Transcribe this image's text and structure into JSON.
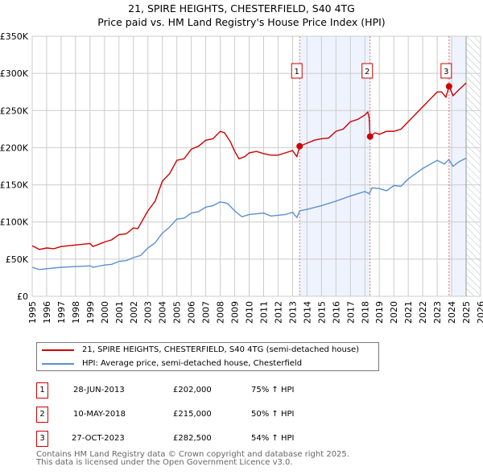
{
  "chart_data": {
    "type": "line",
    "title": "21, SPIRE HEIGHTS, CHESTERFIELD, S40 4TG",
    "subtitle": "Price paid vs. HM Land Registry's House Price Index (HPI)",
    "xlim": [
      1995,
      2026
    ],
    "ylim": [
      0,
      350000
    ],
    "x_ticks": [
      "1995",
      "1996",
      "1997",
      "1998",
      "1999",
      "2000",
      "2001",
      "2002",
      "2003",
      "2004",
      "2005",
      "2006",
      "2007",
      "2008",
      "2009",
      "2010",
      "2011",
      "2012",
      "2013",
      "2014",
      "2015",
      "2016",
      "2017",
      "2018",
      "2019",
      "2020",
      "2021",
      "2022",
      "2023",
      "2024",
      "2025",
      "2026"
    ],
    "y_ticks": [
      {
        "v": 0,
        "l": "£0"
      },
      {
        "v": 50000,
        "l": "£50K"
      },
      {
        "v": 100000,
        "l": "£100K"
      },
      {
        "v": 150000,
        "l": "£150K"
      },
      {
        "v": 200000,
        "l": "£200K"
      },
      {
        "v": 250000,
        "l": "£250K"
      },
      {
        "v": 300000,
        "l": "£300K"
      },
      {
        "v": 350000,
        "l": "£350K"
      }
    ],
    "grid": true,
    "series": [
      {
        "name": "21, SPIRE HEIGHTS, CHESTERFIELD, S40 4TG (semi-detached house)",
        "color": "#cc0000",
        "x": [
          1995,
          1995.5,
          1996,
          1996.5,
          1997,
          1998,
          1999,
          1999.2,
          2000,
          2000.5,
          2001,
          2001.5,
          2002,
          2002.3,
          2003,
          2003.5,
          2004,
          2004.5,
          2005,
          2005.5,
          2006,
          2006.5,
          2007,
          2007.5,
          2008,
          2008.3,
          2008.7,
          2009,
          2009.3,
          2009.7,
          2010,
          2010.5,
          2011,
          2011.5,
          2012,
          2012.5,
          2013,
          2013.3,
          2013.49,
          2014,
          2014.5,
          2015,
          2015.5,
          2016,
          2016.5,
          2017,
          2017.5,
          2018,
          2018.2,
          2018.3,
          2018.36,
          2018.7,
          2019,
          2019.5,
          2020,
          2020.5,
          2021,
          2021.5,
          2022,
          2022.5,
          2023,
          2023.3,
          2023.6,
          2023.82,
          2024.1,
          2024.5,
          2025
        ],
        "y": [
          68000,
          63000,
          65000,
          64000,
          67000,
          69000,
          71000,
          67000,
          73000,
          76000,
          83000,
          84000,
          92000,
          91000,
          115000,
          128000,
          155000,
          165000,
          183000,
          185000,
          198000,
          202000,
          210000,
          212000,
          222000,
          220000,
          208000,
          195000,
          185000,
          188000,
          193000,
          195000,
          192000,
          190000,
          190000,
          193000,
          196000,
          188000,
          202000,
          206000,
          210000,
          212000,
          213000,
          222000,
          225000,
          235000,
          238000,
          244000,
          248000,
          240000,
          215000,
          220000,
          218000,
          222000,
          222000,
          225000,
          235000,
          245000,
          255000,
          265000,
          275000,
          275000,
          268000,
          282500,
          270000,
          278000,
          287000
        ]
      },
      {
        "name": "HPI: Average price, semi-detached house, Chesterfield",
        "color": "#5b8fd4",
        "x": [
          1995,
          1995.5,
          1996,
          1997,
          1998,
          1999,
          1999.2,
          2000,
          2000.5,
          2001,
          2001.5,
          2002,
          2002.5,
          2003,
          2003.5,
          2004,
          2004.5,
          2005,
          2005.5,
          2006,
          2006.5,
          2007,
          2007.5,
          2008,
          2008.5,
          2009,
          2009.5,
          2010,
          2010.5,
          2011,
          2011.5,
          2012,
          2012.5,
          2013,
          2013.3,
          2013.5,
          2014,
          2015,
          2016,
          2017,
          2018,
          2018.3,
          2018.5,
          2019,
          2019.5,
          2020,
          2020.5,
          2021,
          2022,
          2023,
          2023.5,
          2023.8,
          2024.1,
          2024.5,
          2025
        ],
        "y": [
          39000,
          36000,
          37000,
          39000,
          40000,
          41000,
          39000,
          42000,
          43000,
          47000,
          48000,
          52000,
          55000,
          65000,
          72000,
          85000,
          93000,
          104000,
          105000,
          112000,
          114000,
          120000,
          122000,
          127000,
          125000,
          115000,
          107000,
          110000,
          111000,
          112000,
          108000,
          109000,
          110000,
          113000,
          106000,
          115000,
          117000,
          122000,
          128000,
          135000,
          141000,
          138000,
          146000,
          145000,
          142000,
          149000,
          148000,
          158000,
          172000,
          183000,
          178000,
          184000,
          175000,
          181000,
          186000
        ]
      }
    ],
    "sales": [
      {
        "n": "1",
        "x": 2013.49,
        "y": 202000
      },
      {
        "n": "2",
        "x": 2018.36,
        "y": 215000
      },
      {
        "n": "3",
        "x": 2023.82,
        "y": 282500
      }
    ],
    "shaded": [
      [
        2013.49,
        2018.36
      ],
      [
        2023.82,
        2025.0
      ]
    ],
    "forecast_from": 2025.0
  },
  "legend": {
    "items": [
      "21, SPIRE HEIGHTS, CHESTERFIELD, S40 4TG (semi-detached house)",
      "HPI: Average price, semi-detached house, Chesterfield"
    ]
  },
  "table": [
    {
      "n": "1",
      "date": "28-JUN-2013",
      "price": "£202,000",
      "hpi": "75% ↑ HPI"
    },
    {
      "n": "2",
      "date": "10-MAY-2018",
      "price": "£215,000",
      "hpi": "50% ↑ HPI"
    },
    {
      "n": "3",
      "date": "27-OCT-2023",
      "price": "£282,500",
      "hpi": "54% ↑ HPI"
    }
  ],
  "footer": {
    "line1": "Contains HM Land Registry data © Crown copyright and database right 2025.",
    "line2": "This data is licensed under the Open Government Licence v3.0."
  }
}
